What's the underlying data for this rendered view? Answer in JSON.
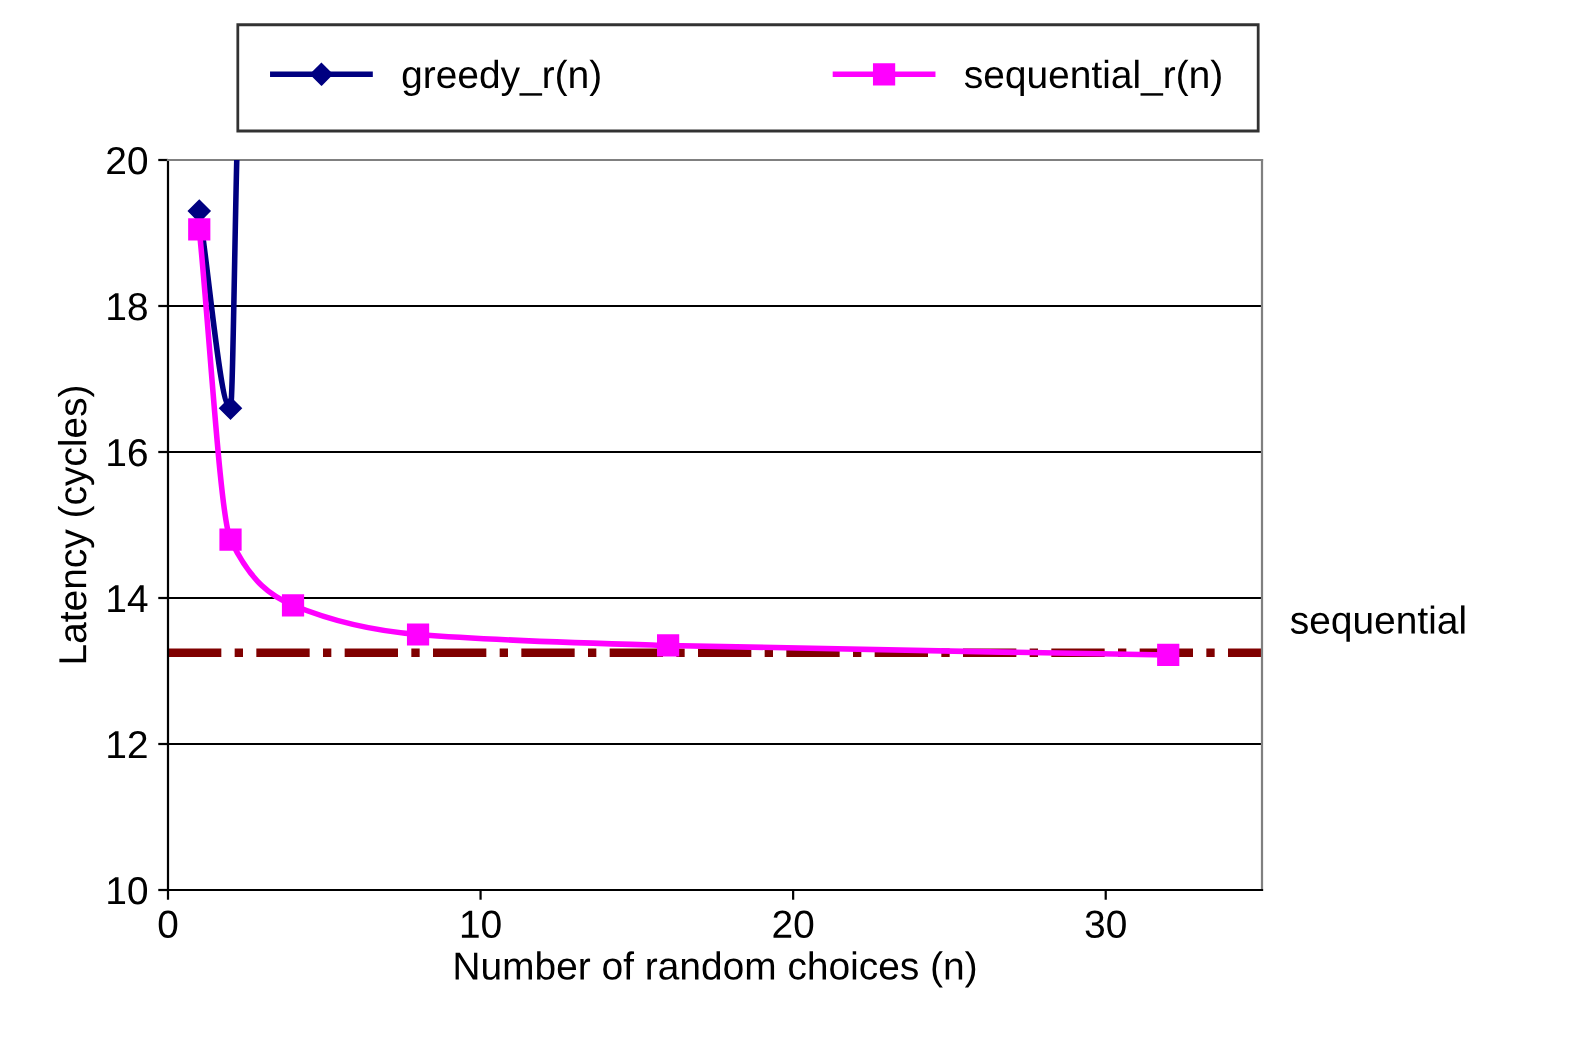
{
  "chart_data": {
    "type": "line",
    "xlabel": "Number of random choices (n)",
    "ylabel": "Latency (cycles)",
    "series": [
      {
        "name": "greedy_r(n)",
        "color": "#000080",
        "marker": "diamond",
        "x": [
          1,
          2,
          2.2
        ],
        "values": [
          19.3,
          16.6,
          20
        ]
      },
      {
        "name": "sequential_r(n)",
        "color": "#ff00ff",
        "marker": "square",
        "x": [
          1,
          2,
          4,
          8,
          16,
          32
        ],
        "values": [
          19.05,
          14.8,
          13.9,
          13.5,
          13.35,
          13.22
        ]
      }
    ],
    "ref_lines": [
      {
        "axis": "y",
        "value": 13.25,
        "label": "sequential",
        "color": "#800000",
        "line_style": "dashdot"
      }
    ],
    "xlim": [
      0,
      35
    ],
    "xticks": [
      0,
      10,
      20,
      30
    ],
    "ylim": [
      10,
      20
    ],
    "yticks": [
      10,
      12,
      14,
      16,
      18,
      20
    ],
    "grid": "y",
    "legend": "top"
  }
}
